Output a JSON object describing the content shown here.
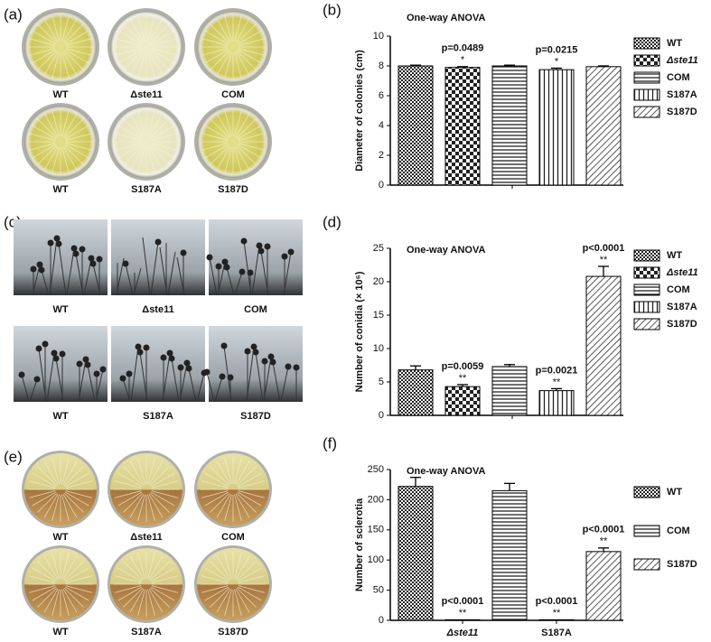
{
  "panels": [
    {
      "label": "(a)",
      "rows": [
        [
          "WT",
          "Δste11",
          "COM"
        ],
        [
          "WT",
          "S187A",
          "S187D"
        ]
      ]
    },
    {
      "label": "(c)",
      "rows": [
        [
          "WT",
          "Δste11",
          "COM"
        ],
        [
          "WT",
          "S187A",
          "S187D"
        ]
      ]
    },
    {
      "label": "(e)",
      "rows": [
        [
          "WT",
          "Δste11",
          "COM"
        ],
        [
          "WT",
          "S187A",
          "S187D"
        ]
      ]
    }
  ],
  "chart_data": [
    {
      "type": "bar",
      "panel_label": "(b)",
      "title": "One-way ANOVA",
      "ylabel": "Diameter of colonies (cm)",
      "ylim": [
        0,
        10
      ],
      "yticks": [
        0,
        2,
        4,
        6,
        8,
        10
      ],
      "bars": [
        {
          "legend": "WT",
          "pattern": "fine",
          "value": 8,
          "error": 0.05
        },
        {
          "legend": "Δste11",
          "pattern": "checker",
          "value": 7.9,
          "error": 0.05,
          "p_label": "p=0.0489",
          "stars": "*"
        },
        {
          "legend": "COM",
          "pattern": "horizontal",
          "value": 8,
          "error": 0.05
        },
        {
          "legend": "S187A",
          "pattern": "vertical",
          "value": 7.75,
          "error": 0.1,
          "p_label": "p=0.0215",
          "stars": "*"
        },
        {
          "legend": "S187D",
          "pattern": "diagonal",
          "value": 7.95,
          "error": 0.05
        }
      ]
    },
    {
      "type": "bar",
      "panel_label": "(d)",
      "title": "One-way ANOVA",
      "ylabel": "Number of conidia (× 10⁶)",
      "ylim": [
        0,
        25
      ],
      "yticks": [
        0,
        5,
        10,
        15,
        20,
        25
      ],
      "bars": [
        {
          "legend": "WT",
          "pattern": "fine",
          "value": 6.8,
          "error": 0.6
        },
        {
          "legend": "Δste11",
          "pattern": "checker",
          "value": 4.3,
          "error": 0.3,
          "p_label": "p=0.0059",
          "stars": "**"
        },
        {
          "legend": "COM",
          "pattern": "horizontal",
          "value": 7.3,
          "error": 0.3
        },
        {
          "legend": "S187A",
          "pattern": "vertical",
          "value": 3.7,
          "error": 0.3,
          "p_label": "p=0.0021",
          "stars": "**"
        },
        {
          "legend": "S187D",
          "pattern": "diagonal",
          "value": 20.8,
          "error": 1.5,
          "p_label": "p<0.0001",
          "stars": "**"
        }
      ]
    },
    {
      "type": "bar",
      "panel_label": "(f)",
      "title": "One-way ANOVA",
      "ylabel": "Number of sclerotia",
      "ylim": [
        0,
        250
      ],
      "yticks": [
        0,
        50,
        100,
        150,
        200,
        250
      ],
      "bars": [
        {
          "legend": "WT",
          "pattern": "fine",
          "value": 222,
          "error": 15
        },
        {
          "category": "Δste11",
          "pattern": "fine",
          "value": 1,
          "p_label": "p<0.0001",
          "stars": "**"
        },
        {
          "legend": "COM",
          "pattern": "horizontal",
          "value": 215,
          "error": 12
        },
        {
          "category": "S187A",
          "pattern": "fine",
          "value": 1,
          "p_label": "p<0.0001",
          "stars": "**"
        },
        {
          "legend": "S187D",
          "pattern": "diagonal",
          "value": 114,
          "error": 6,
          "p_label": "p<0.0001",
          "stars": "**"
        }
      ]
    }
  ]
}
